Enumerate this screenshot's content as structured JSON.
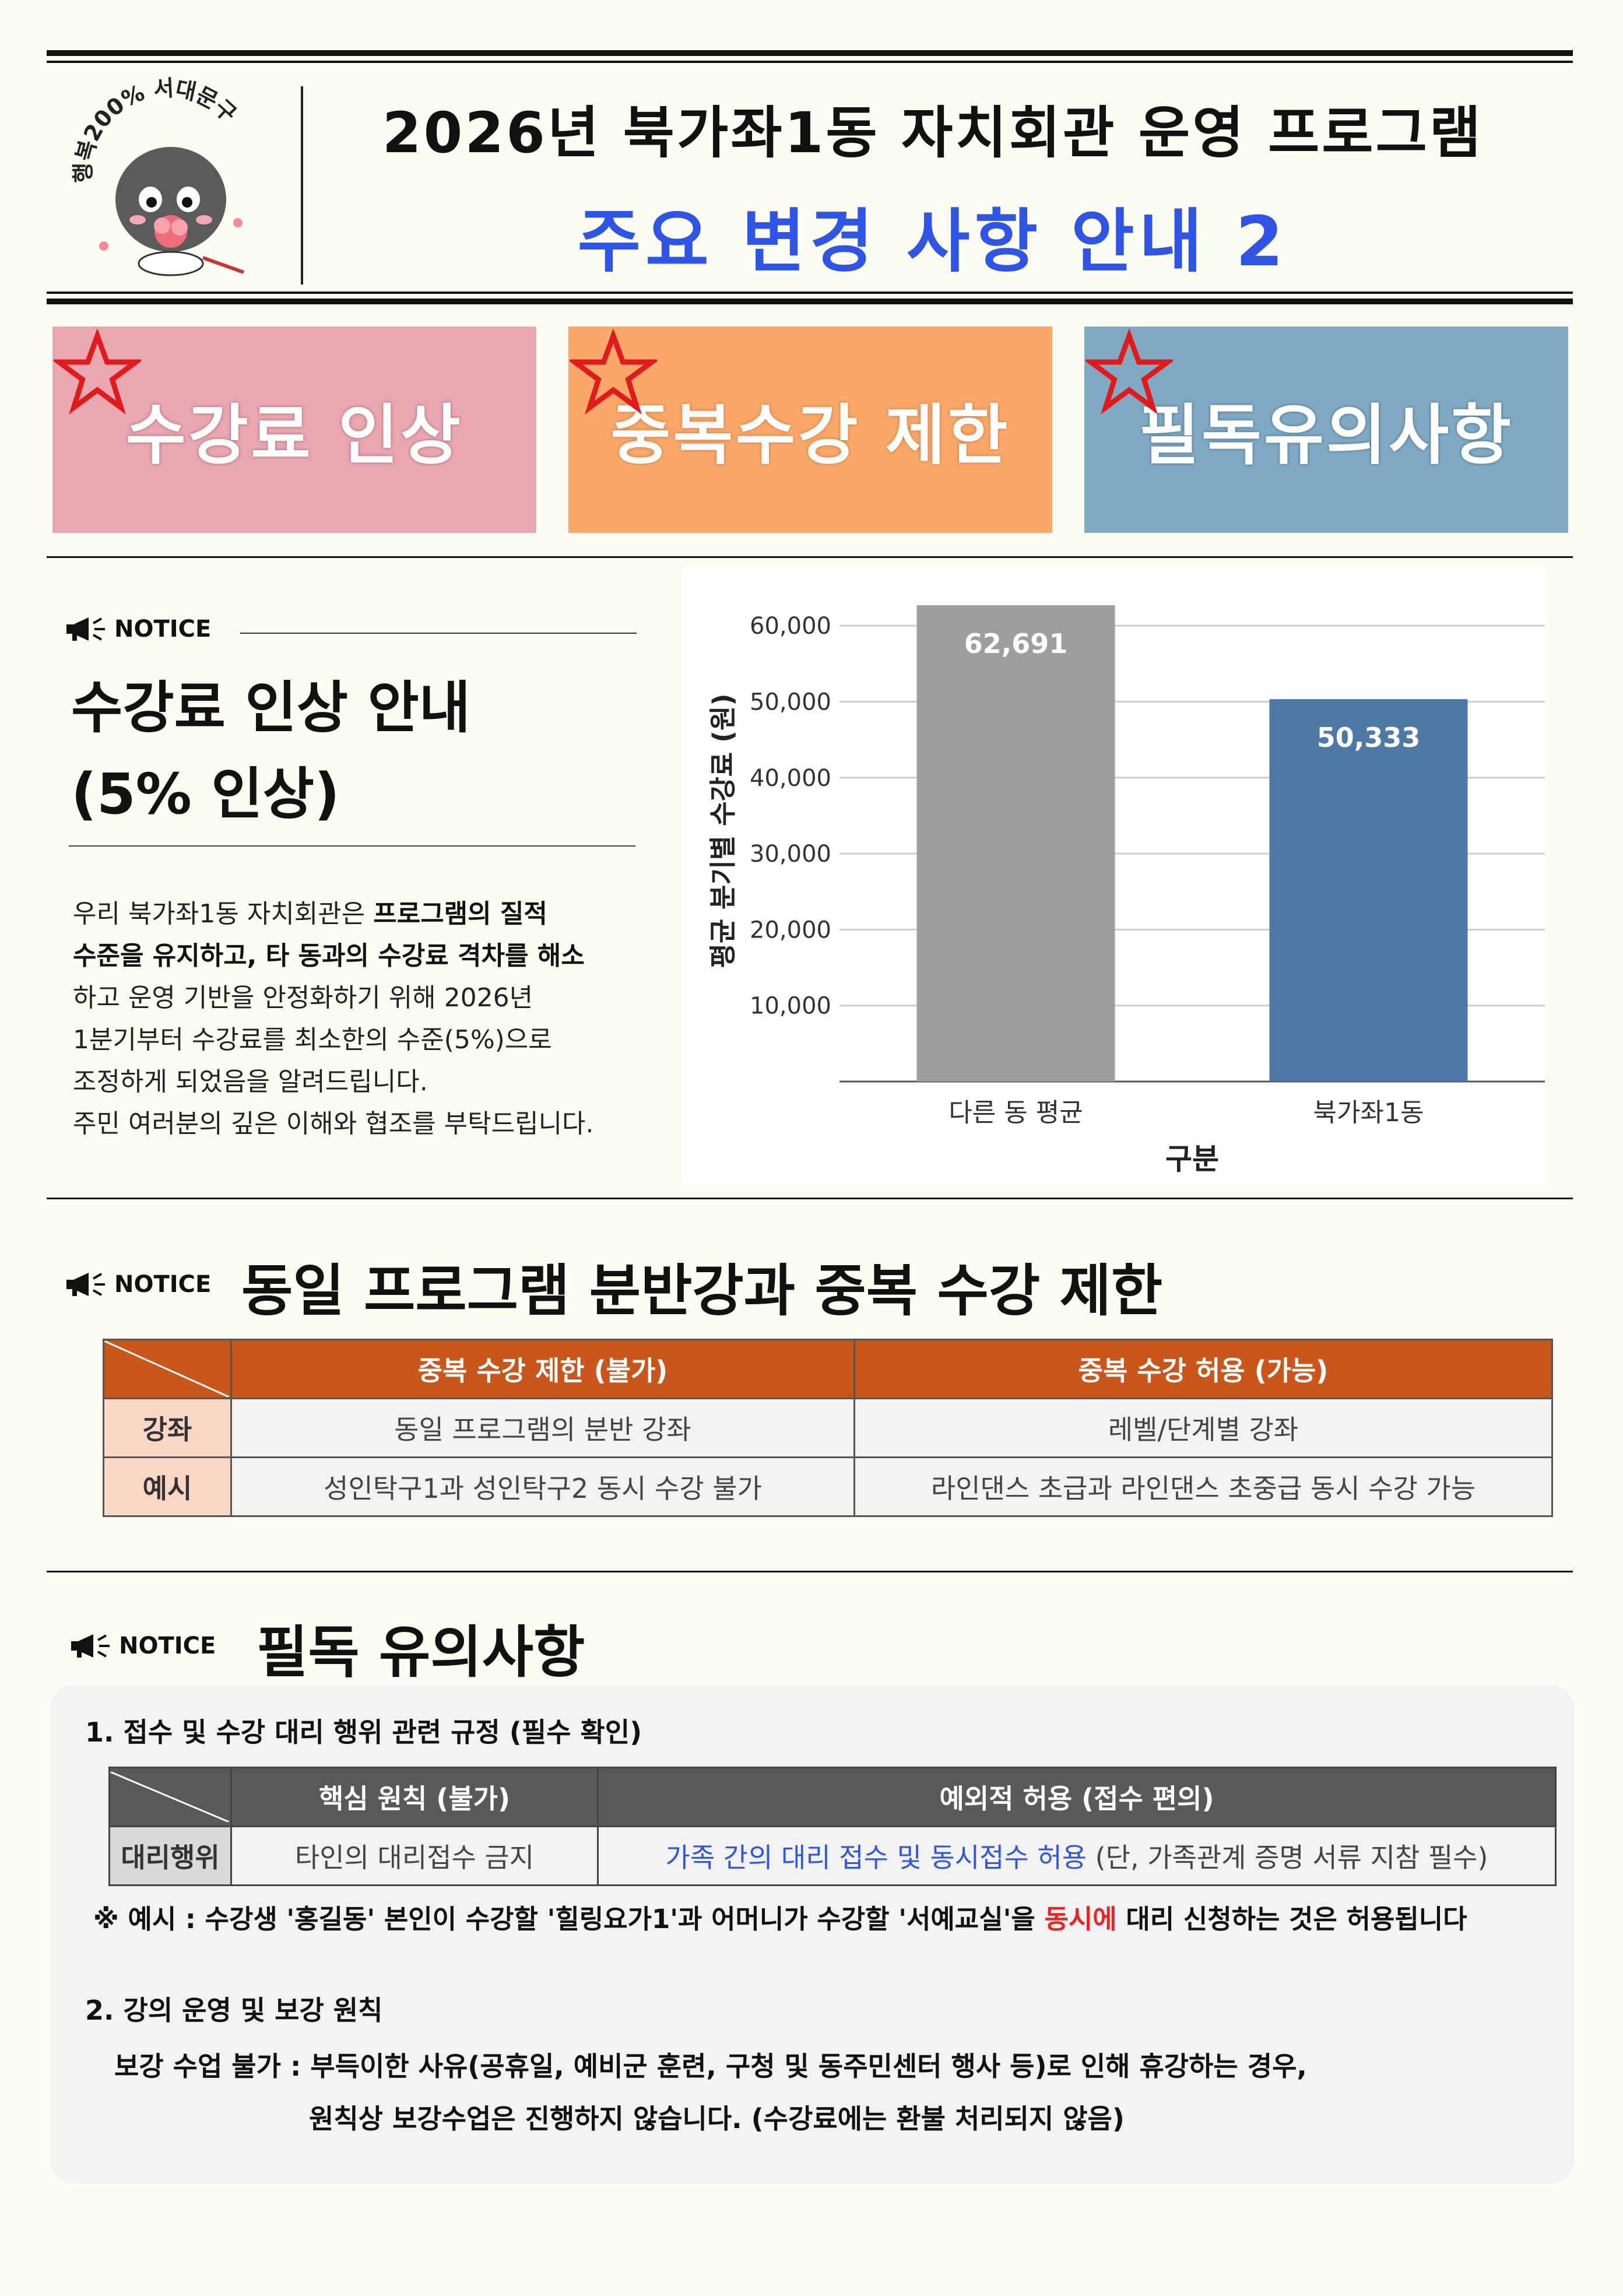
{
  "header": {
    "title": "2026년 북가좌1동 자치회관 운영 프로그램",
    "subtitle": "주요 변경 사항 안내 2",
    "logo_text": "행복200% 서대문구"
  },
  "banners": [
    {
      "label": "수강료 인상"
    },
    {
      "label": "중복수강 제한"
    },
    {
      "label": "필독유의사항"
    }
  ],
  "notice_label": "NOTICE",
  "fee_section": {
    "title_line1": "수강료 인상 안내",
    "title_line2": "(5% 인상)",
    "para": [
      {
        "pre": "우리 북가좌1동 자치회관은 ",
        "bold": "프로그램의 질적",
        "post": ""
      },
      {
        "pre": "",
        "bold": "수준을 유지하고, 타 동과의 수강료 격차를 해소",
        "post": ""
      },
      {
        "pre": "하고 운영 기반을 안정화하기 위해 2026년",
        "bold": "",
        "post": ""
      },
      {
        "pre": "1분기부터 수강료를 최소한의 수준(5%)으로",
        "bold": "",
        "post": ""
      },
      {
        "pre": "조정하게 되었음을 알려드립니다.",
        "bold": "",
        "post": ""
      },
      {
        "pre": "주민 여러분의 깊은 이해와 협조를 부탁드립니다.",
        "bold": "",
        "post": ""
      }
    ]
  },
  "chart_data": {
    "type": "bar",
    "categories": [
      "다른 동 평균",
      "북가좌1동"
    ],
    "values": [
      62691,
      50333
    ],
    "value_labels": [
      "62,691",
      "50,333"
    ],
    "colors": [
      "#9e9e9e",
      "#4e79a7"
    ],
    "xlabel": "구분",
    "ylabel": "평균 분기별 수강료 (원)",
    "yticks": [
      10000,
      20000,
      30000,
      40000,
      50000,
      60000
    ],
    "ytick_labels": [
      "10,000",
      "20,000",
      "30,000",
      "40,000",
      "50,000",
      "60,000"
    ],
    "ylim": [
      0,
      66000
    ],
    "grid": true
  },
  "dup_section": {
    "title": "동일 프로그램 분반강과 중복 수강 제한",
    "col1": "중복 수강 제한 (불가)",
    "col2": "중복 수강 허용 (가능)",
    "rows": [
      {
        "head": "강좌",
        "c1": "동일 프로그램의 분반 강좌",
        "c2": "레벨/단계별 강좌"
      },
      {
        "head": "예시",
        "c1": "성인탁구1과 성인탁구2 동시 수강 불가",
        "c2": "라인댄스 초급과 라인댄스 초중급 동시 수강 가능"
      }
    ]
  },
  "rules_section": {
    "title": "필독 유의사항",
    "item1_title": "1. 접수 및 수강 대리 행위 관련 규정 (필수 확인)",
    "col1": "핵심 원칙 (불가)",
    "col2": "예외적 허용 (접수 편의)",
    "row_head": "대리행위",
    "row_c1": "타인의 대리접수 금지",
    "row_c2_blue": "가족 간의 대리 접수 및 동시접수 허용",
    "row_c2_rest": " (단, 가족관계 증명 서류 지참 필수)",
    "example_pre": "※ 예시 : 수강생 '홍길동' 본인이 수강할 '힐링요가1'과 어머니가 수강할 '서예교실'을 ",
    "example_red": "동시에",
    "example_post": " 대리 신청하는 것은 허용됩니다",
    "item2_title": "2. 강의 운영 및 보강 원칙",
    "item2_line1": "보강 수업 불가 : 부득이한 사유(공휴일, 예비군 훈련, 구청 및 동주민센터 행사 등)로 인해 휴강하는 경우,",
    "item2_line2": "원칙상 보강수업은 진행하지 않습니다. (수강료에는 환불 처리되지 않음)"
  }
}
